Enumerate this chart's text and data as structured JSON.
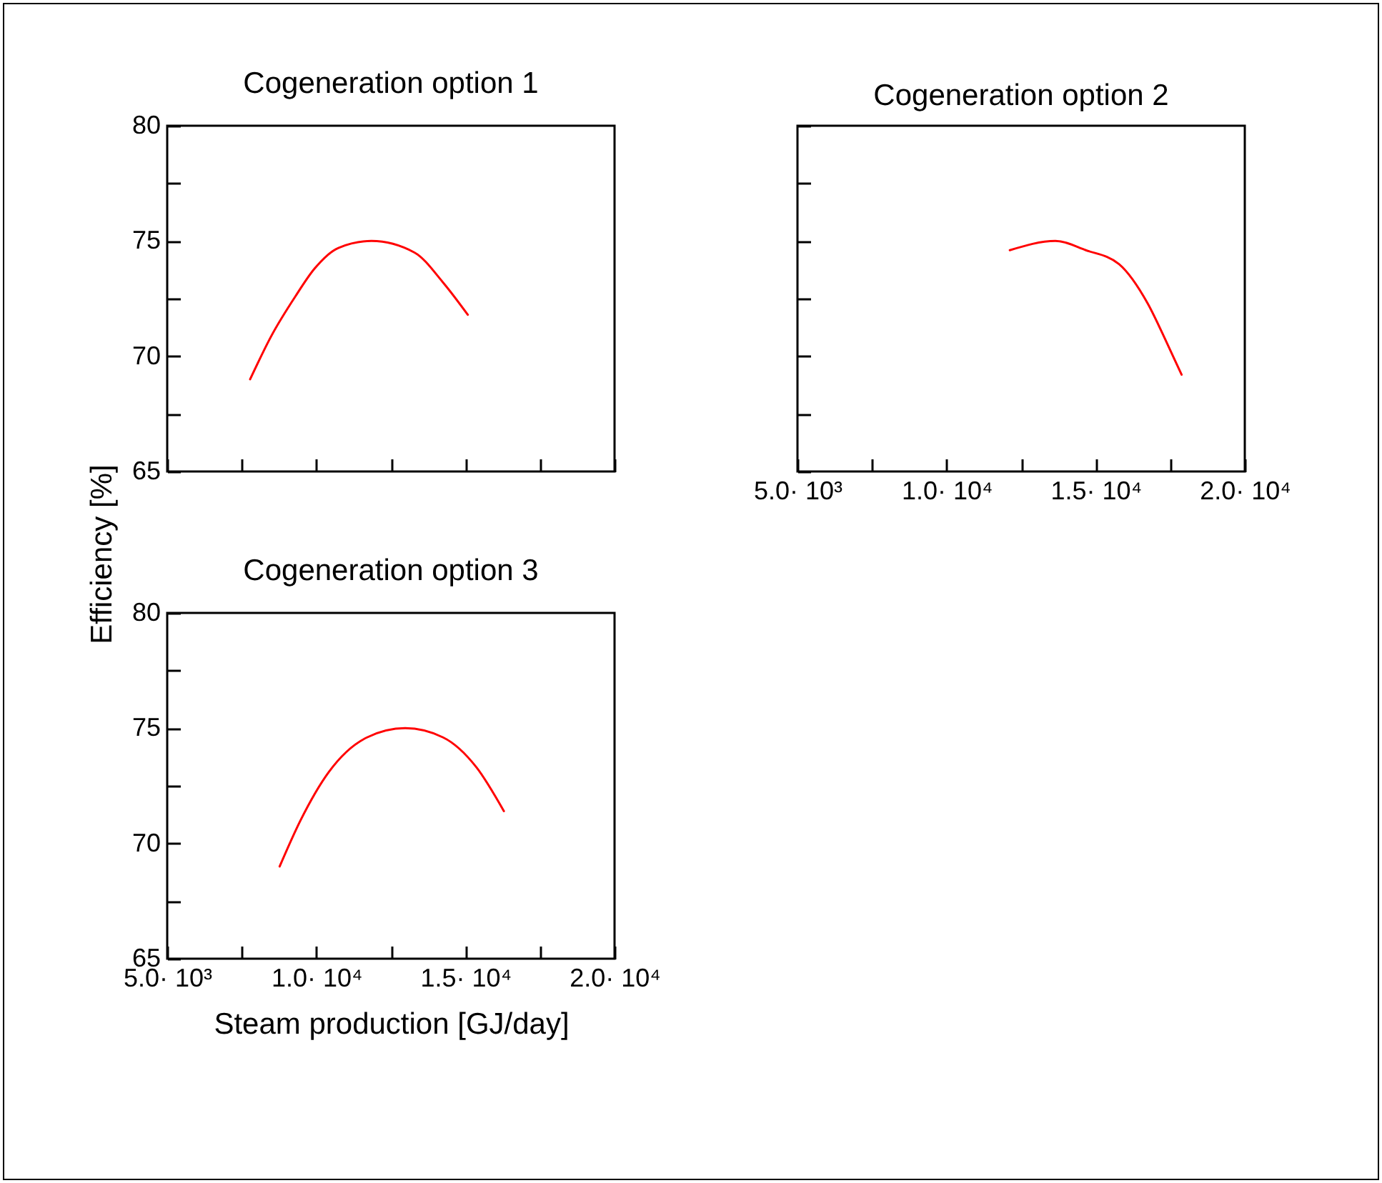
{
  "chart_data": [
    {
      "type": "line",
      "title": "Cogeneration option 1",
      "tick_labels": "y",
      "grid": false,
      "xlim": [
        5000,
        20000
      ],
      "xticks": [
        {
          "value": 5000,
          "label": null
        },
        {
          "value": 7500,
          "label": null
        },
        {
          "value": 10000,
          "label": null
        },
        {
          "value": 12500,
          "label": null
        },
        {
          "value": 15000,
          "label": null
        },
        {
          "value": 17500,
          "label": null
        },
        {
          "value": 20000,
          "label": null
        }
      ],
      "ylim": [
        65,
        80
      ],
      "yticks": [
        65,
        {
          "value": 67.5,
          "label": null
        },
        70,
        {
          "value": 72.5,
          "label": null
        },
        75,
        {
          "value": 77.5,
          "label": null
        },
        80
      ],
      "series": [
        {
          "color": "#ff0000",
          "x": [
            7780,
            8500,
            9300,
            9940,
            10740,
            11850,
            13290,
            14250,
            15080
          ],
          "values": [
            69.0,
            70.9,
            72.6,
            73.8,
            74.7,
            75.0,
            74.5,
            73.2,
            71.8
          ]
        }
      ]
    },
    {
      "type": "line",
      "title": "Cogeneration option 2",
      "tick_labels": "x",
      "grid": false,
      "xlim": [
        5000,
        20000
      ],
      "xticks": [
        {
          "value": 5000,
          "label": "5.0· 10³"
        },
        {
          "value": 7500,
          "label": null
        },
        {
          "value": 10000,
          "label": "1.0· 10⁴"
        },
        {
          "value": 12500,
          "label": null
        },
        {
          "value": 15000,
          "label": "1.5· 10⁴"
        },
        {
          "value": 17500,
          "label": null
        },
        {
          "value": 20000,
          "label": "2.0· 10⁴"
        }
      ],
      "ylim": [
        65,
        80
      ],
      "yticks": [
        65,
        {
          "value": 67.5,
          "label": null
        },
        70,
        {
          "value": 72.5,
          "label": null
        },
        75,
        {
          "value": 77.5,
          "label": null
        },
        80
      ],
      "series": [
        {
          "color": "#ff0000",
          "x": [
            12120,
            13650,
            14670,
            15780,
            16740,
            17380,
            17880
          ],
          "values": [
            74.6,
            75.0,
            74.6,
            74.0,
            72.3,
            70.6,
            69.2
          ]
        }
      ]
    },
    {
      "type": "line",
      "title": "Cogeneration option 3",
      "xlabel": "Steam production [GJ/day]",
      "ylabel": "Efficiency [%]",
      "grid": false,
      "xlim": [
        5000,
        20000
      ],
      "xticks": [
        {
          "value": 5000,
          "label": "5.0· 10³"
        },
        {
          "value": 7500,
          "label": null
        },
        {
          "value": 10000,
          "label": "1.0· 10⁴"
        },
        {
          "value": 12500,
          "label": null
        },
        {
          "value": 15000,
          "label": "1.5· 10⁴"
        },
        {
          "value": 17500,
          "label": null
        },
        {
          "value": 20000,
          "label": "2.0· 10⁴"
        }
      ],
      "ylim": [
        65,
        80
      ],
      "yticks": [
        65,
        {
          "value": 67.5,
          "label": null
        },
        70,
        {
          "value": 72.5,
          "label": null
        },
        75,
        {
          "value": 77.5,
          "label": null
        },
        80
      ],
      "series": [
        {
          "color": "#ff0000",
          "x": [
            8770,
            9470,
            10420,
            11700,
            12980,
            14250,
            15370,
            16290
          ],
          "values": [
            69.0,
            71.0,
            73.1,
            74.6,
            75.0,
            74.6,
            73.3,
            71.4
          ]
        }
      ]
    }
  ]
}
